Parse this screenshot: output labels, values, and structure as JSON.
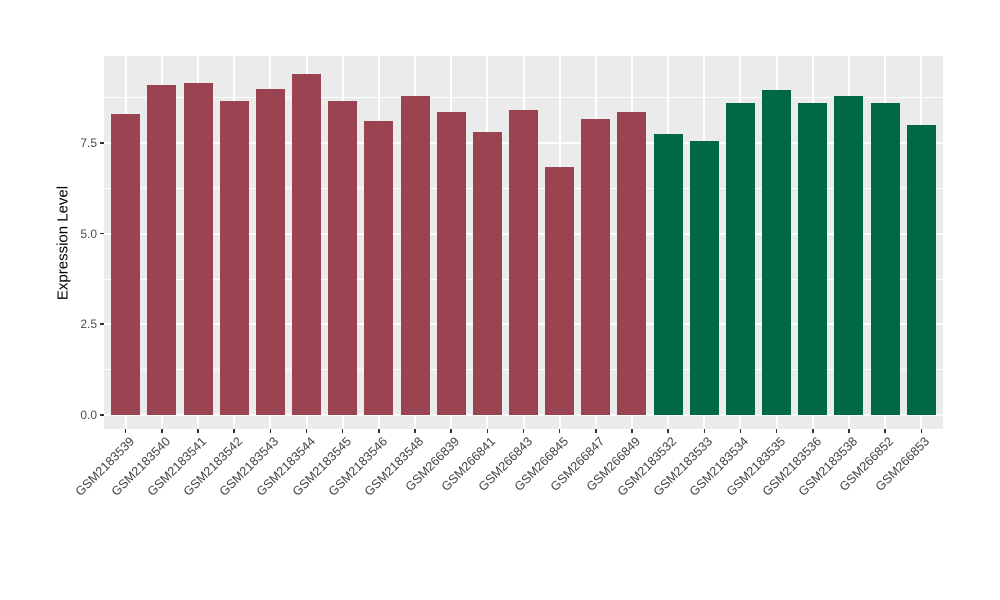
{
  "figure": {
    "background_color": "#FFFFFF",
    "panel_background_color": "#EBEBEB",
    "grid_color": "#FFFFFF"
  },
  "chart_data": {
    "type": "bar",
    "title": "",
    "xlabel": "",
    "ylabel": "Expression Level",
    "categories": [
      "GSM2183539",
      "GSM2183540",
      "GSM2183541",
      "GSM2183542",
      "GSM2183543",
      "GSM2183544",
      "GSM2183545",
      "GSM2183546",
      "GSM2183548",
      "GSM266839",
      "GSM266841",
      "GSM266843",
      "GSM266845",
      "GSM266847",
      "GSM266849",
      "GSM2183532",
      "GSM2183533",
      "GSM2183534",
      "GSM2183535",
      "GSM2183536",
      "GSM2183538",
      "GSM266852",
      "GSM266853"
    ],
    "values": [
      8.3,
      9.1,
      9.15,
      8.65,
      9.0,
      9.4,
      8.65,
      8.1,
      8.8,
      8.35,
      7.8,
      8.4,
      6.85,
      8.15,
      8.35,
      7.75,
      7.55,
      8.6,
      8.95,
      8.6,
      8.8,
      8.6,
      8.0
    ],
    "bar_colors": [
      "#9A4452",
      "#9A4452",
      "#9A4452",
      "#9A4452",
      "#9A4452",
      "#9A4452",
      "#9A4452",
      "#9A4452",
      "#9A4452",
      "#9A4452",
      "#9A4452",
      "#9A4452",
      "#9A4452",
      "#9A4452",
      "#9A4452",
      "#006847",
      "#006847",
      "#006847",
      "#006847",
      "#006847",
      "#006847",
      "#006847",
      "#006847"
    ],
    "group_colors": {
      "left_group": "#9A4452",
      "right_group": "#006847"
    },
    "yticks": [
      {
        "value": 0,
        "label": "0.0"
      },
      {
        "value": 2.5,
        "label": "2.5"
      },
      {
        "value": 5,
        "label": "5.0"
      },
      {
        "value": 7.5,
        "label": "7.5"
      }
    ],
    "minor_yticks": [
      1.25,
      3.75,
      6.25,
      8.75
    ],
    "ylim": [
      -0.386,
      9.9
    ],
    "grid": true,
    "legend": false,
    "x_label_rotation": 45
  }
}
